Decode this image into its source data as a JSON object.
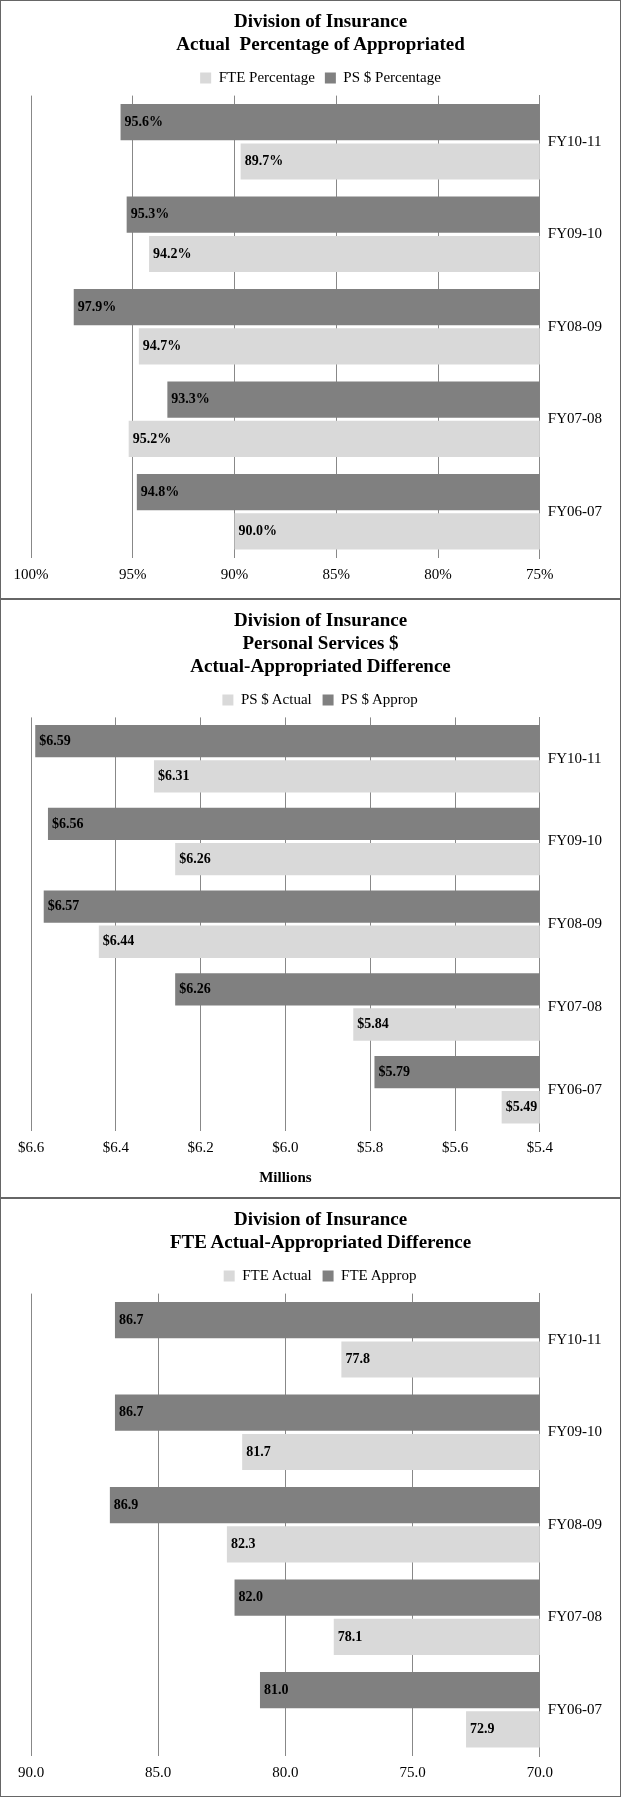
{
  "chart_data": [
    {
      "type": "bar",
      "orientation": "horizontal",
      "title": "Division of Insurance\nActual  Percentage of Appropriated",
      "categories": [
        "FY10-11",
        "FY09-10",
        "FY08-09",
        "FY07-08",
        "FY06-07"
      ],
      "series": [
        {
          "name": "FTE Percentage",
          "color": "#d9d9d9",
          "values": [
            89.7,
            94.2,
            94.7,
            95.2,
            90.0
          ],
          "value_labels": [
            "89.7%",
            "94.2%",
            "94.7%",
            "95.2%",
            "90.0%"
          ]
        },
        {
          "name": "PS $ Percentage",
          "color": "#808080",
          "values": [
            95.6,
            95.3,
            97.9,
            93.3,
            94.8
          ],
          "value_labels": [
            "95.6%",
            "95.3%",
            "97.9%",
            "93.3%",
            "94.8%"
          ]
        }
      ],
      "xlim": [
        100,
        75
      ],
      "xticks": [
        {
          "value": 75,
          "label": "75%"
        },
        {
          "value": 80,
          "label": "80%"
        },
        {
          "value": 85,
          "label": "85%"
        },
        {
          "value": 90,
          "label": "90%"
        },
        {
          "value": 95,
          "label": "95%"
        },
        {
          "value": 100,
          "label": "100%"
        }
      ],
      "grid": "x",
      "legend": "top"
    },
    {
      "type": "bar",
      "orientation": "horizontal",
      "title": "Division of Insurance\nPersonal Services $\nActual-Appropriated Difference",
      "xlabel": "Millions",
      "categories": [
        "FY10-11",
        "FY09-10",
        "FY08-09",
        "FY07-08",
        "FY06-07"
      ],
      "series": [
        {
          "name": "PS $ Actual",
          "color": "#d9d9d9",
          "values": [
            6.31,
            6.26,
            6.44,
            5.84,
            5.49
          ],
          "value_labels": [
            "$6.31",
            "$6.26",
            "$6.44",
            "$5.84",
            "$5.49"
          ]
        },
        {
          "name": "PS $ Approp",
          "color": "#808080",
          "values": [
            6.59,
            6.56,
            6.57,
            6.26,
            5.79
          ],
          "value_labels": [
            "$6.59",
            "$6.56",
            "$6.57",
            "$6.26",
            "$5.79"
          ]
        }
      ],
      "xlim": [
        6.6,
        5.4
      ],
      "xticks": [
        {
          "value": 5.4,
          "label": "$5.4"
        },
        {
          "value": 5.6,
          "label": "$5.6"
        },
        {
          "value": 5.8,
          "label": "$5.8"
        },
        {
          "value": 6.0,
          "label": "$6.0"
        },
        {
          "value": 6.2,
          "label": "$6.2"
        },
        {
          "value": 6.4,
          "label": "$6.4"
        },
        {
          "value": 6.6,
          "label": "$6.6"
        }
      ],
      "grid": "x",
      "legend": "top"
    },
    {
      "type": "bar",
      "orientation": "horizontal",
      "title": "Division of Insurance\nFTE Actual-Appropriated Difference",
      "categories": [
        "FY10-11",
        "FY09-10",
        "FY08-09",
        "FY07-08",
        "FY06-07"
      ],
      "series": [
        {
          "name": "FTE Actual",
          "color": "#d9d9d9",
          "values": [
            77.8,
            81.7,
            82.3,
            78.1,
            72.9
          ],
          "value_labels": [
            "77.8",
            "81.7",
            "82.3",
            "78.1",
            "72.9"
          ]
        },
        {
          "name": "FTE Approp",
          "color": "#808080",
          "values": [
            86.7,
            86.7,
            86.9,
            82.0,
            81.0
          ],
          "value_labels": [
            "86.7",
            "86.7",
            "86.9",
            "82.0",
            "81.0"
          ]
        }
      ],
      "xlim": [
        90,
        70
      ],
      "xticks": [
        {
          "value": 70,
          "label": "70.0"
        },
        {
          "value": 75,
          "label": "75.0"
        },
        {
          "value": 80,
          "label": "80.0"
        },
        {
          "value": 85,
          "label": "85.0"
        },
        {
          "value": 90,
          "label": "90.0"
        }
      ],
      "grid": "x",
      "legend": "top"
    }
  ]
}
